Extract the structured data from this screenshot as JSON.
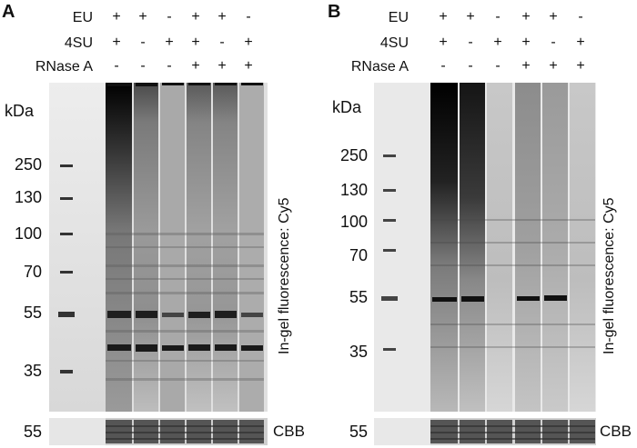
{
  "figure": {
    "panels": [
      {
        "label": "A",
        "conditions": [
          {
            "name": "EU",
            "values": [
              "+",
              "+",
              "-",
              "+",
              "+",
              "-"
            ]
          },
          {
            "name": "4SU",
            "values": [
              "+",
              "-",
              "+",
              "+",
              "-",
              "+"
            ]
          },
          {
            "name": "RNase A",
            "values": [
              "-",
              "-",
              "-",
              "+",
              "+",
              "+"
            ]
          }
        ],
        "kda_label": "kDa",
        "mw_markers": [
          "250",
          "130",
          "100",
          "70",
          "55",
          "35"
        ],
        "side_label": "In-gel fluorescence: Cy5",
        "cbb_marker": "55",
        "cbb_label": "CBB"
      },
      {
        "label": "B",
        "conditions": [
          {
            "name": "EU",
            "values": [
              "+",
              "+",
              "-",
              "+",
              "+",
              "-"
            ]
          },
          {
            "name": "4SU",
            "values": [
              "+",
              "-",
              "+",
              "+",
              "-",
              "+"
            ]
          },
          {
            "name": "RNase A",
            "values": [
              "-",
              "-",
              "-",
              "+",
              "+",
              "+"
            ]
          }
        ],
        "kda_label": "kDa",
        "mw_markers": [
          "250",
          "130",
          "100",
          "70",
          "55",
          "35"
        ],
        "side_label": "In-gel fluorescence: Cy5",
        "cbb_marker": "55",
        "cbb_label": "CBB"
      }
    ]
  }
}
